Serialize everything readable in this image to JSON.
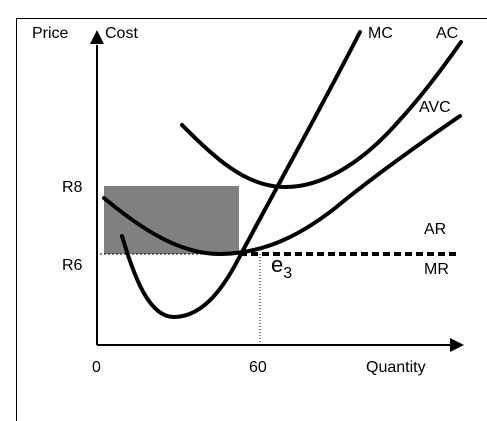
{
  "axes": {
    "y_label_left": "Price",
    "y_label_right": "Cost",
    "x_label": "Quantity",
    "origin_label": "0",
    "x_tick_label": "60",
    "y_tick_high_label": "R8",
    "y_tick_low_label": "R6"
  },
  "curves": {
    "mc_label": "MC",
    "ac_label": "AC",
    "avc_label": "AVC",
    "ar_label": "AR",
    "mr_label": "MR"
  },
  "point": {
    "label_base": "e",
    "label_sub": "3"
  },
  "colors": {
    "profit_rect": "#808080",
    "lines": "#000000"
  },
  "chart_data": {
    "type": "line",
    "x": [
      60
    ],
    "ticks_y": [
      "R8",
      "R6"
    ],
    "ticks_x": [
      "0",
      "60"
    ],
    "series": [
      {
        "name": "MC"
      },
      {
        "name": "AC"
      },
      {
        "name": "AVC"
      },
      {
        "name": "AR"
      },
      {
        "name": "MR"
      }
    ],
    "xlabel": "Quantity",
    "ylabel": "Price Cost"
  }
}
